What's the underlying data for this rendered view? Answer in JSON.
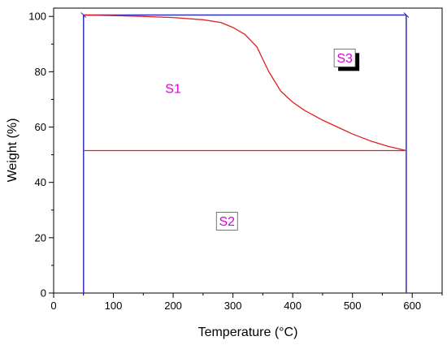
{
  "chart_data": {
    "type": "line",
    "xlabel": "Temperature (°C)",
    "ylabel": "Weight (%)",
    "xlim": [
      0,
      650
    ],
    "ylim": [
      0,
      103
    ],
    "x_ticks": [
      "0",
      "100",
      "200",
      "300",
      "400",
      "500",
      "600"
    ],
    "y_ticks": [
      "0",
      "20",
      "40",
      "60",
      "80",
      "100"
    ],
    "grid": false,
    "series": [
      {
        "color": "#e02020",
        "x": [
          50,
          100,
          150,
          200,
          250,
          280,
          300,
          320,
          340,
          360,
          380,
          400,
          420,
          450,
          480,
          500,
          530,
          560,
          590
        ],
        "y": [
          100.5,
          100.3,
          100.0,
          99.6,
          98.8,
          97.8,
          96.0,
          93.5,
          89.0,
          80.0,
          73.0,
          69.0,
          66.0,
          62.5,
          59.5,
          57.5,
          55.0,
          53.0,
          51.5
        ]
      },
      {
        "color": "#e02020",
        "x": [
          50,
          590
        ],
        "y": [
          51.5,
          51.5
        ]
      }
    ],
    "bounds": {
      "color": "#3030c0",
      "x_left": 50,
      "x_right": 590,
      "y_top": 100.5
    },
    "annotations": [
      {
        "text": "S1",
        "x": 200,
        "y": 74,
        "boxed": false
      },
      {
        "text": "S3",
        "x": 487,
        "y": 85,
        "boxed": true,
        "shadow": true
      },
      {
        "text": "S2",
        "x": 290,
        "y": 26,
        "boxed": true,
        "shadow": false
      }
    ]
  }
}
